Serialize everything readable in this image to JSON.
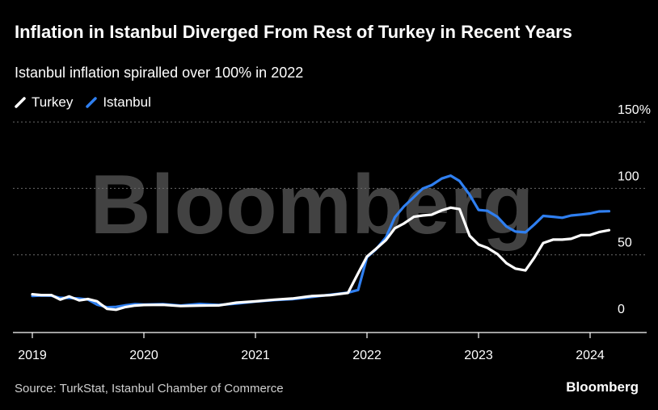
{
  "header": {
    "title": "Inflation in Istanbul Diverged From Rest of Turkey in Recent Years",
    "subtitle": "Istanbul inflation spiralled over 100% in 2022"
  },
  "footer": {
    "source": "Source: TurkStat, Istanbul Chamber of Commerce",
    "brand": "Bloomberg"
  },
  "watermark": "Bloomberg",
  "colors": {
    "background": "#000000",
    "turkey": "#ffffff",
    "istanbul": "#2f7ff0",
    "grid": "#6a6a6a"
  },
  "chart_data": {
    "type": "line",
    "title": "Inflation in Istanbul Diverged From Rest of Turkey in Recent Years",
    "subtitle": "Istanbul inflation spiralled over 100% in 2022",
    "xlabel": "",
    "ylabel": "",
    "x_ticks": [
      "2019",
      "2020",
      "2021",
      "2022",
      "2023",
      "2024"
    ],
    "y_ticks": [
      {
        "value": 0,
        "label": "0"
      },
      {
        "value": 50,
        "label": "50"
      },
      {
        "value": 100,
        "label": "100"
      },
      {
        "value": 150,
        "label": "150%"
      }
    ],
    "xlim": [
      2019.0,
      2024.5
    ],
    "ylim": [
      -8,
      150
    ],
    "grid": true,
    "legend": "top-left",
    "series": [
      {
        "name": "Turkey",
        "color": "#ffffff",
        "x": [
          2019.0,
          2019.08,
          2019.17,
          2019.25,
          2019.33,
          2019.42,
          2019.5,
          2019.58,
          2019.67,
          2019.75,
          2019.83,
          2019.92,
          2020.0,
          2020.17,
          2020.33,
          2020.5,
          2020.67,
          2020.83,
          2021.0,
          2021.17,
          2021.33,
          2021.5,
          2021.67,
          2021.83,
          2021.92,
          2022.0,
          2022.08,
          2022.17,
          2022.25,
          2022.33,
          2022.42,
          2022.5,
          2022.58,
          2022.67,
          2022.75,
          2022.83,
          2022.92,
          2023.0,
          2023.08,
          2023.17,
          2023.25,
          2023.33,
          2023.42,
          2023.5,
          2023.58,
          2023.67,
          2023.75,
          2023.83,
          2023.92,
          2024.0,
          2024.08,
          2024.17
        ],
        "y": [
          20.3,
          19.7,
          19.7,
          16.3,
          18.7,
          15.7,
          16.7,
          15.0,
          9.3,
          8.6,
          10.6,
          11.8,
          12.2,
          12.4,
          11.4,
          11.8,
          11.9,
          14.0,
          14.97,
          16.2,
          17.1,
          18.9,
          19.6,
          21.3,
          36.1,
          48.7,
          54.4,
          61.1,
          70.0,
          73.5,
          78.6,
          79.6,
          80.2,
          83.5,
          85.5,
          84.4,
          64.3,
          57.7,
          55.2,
          50.5,
          43.7,
          39.6,
          38.2,
          47.8,
          58.9,
          61.5,
          61.4,
          62.0,
          64.8,
          64.9,
          67.1,
          68.5
        ]
      },
      {
        "name": "Istanbul",
        "color": "#2f7ff0",
        "x": [
          2019.0,
          2019.08,
          2019.17,
          2019.25,
          2019.33,
          2019.42,
          2019.5,
          2019.58,
          2019.67,
          2019.75,
          2019.83,
          2019.92,
          2020.0,
          2020.17,
          2020.33,
          2020.5,
          2020.67,
          2020.83,
          2021.0,
          2021.17,
          2021.33,
          2021.5,
          2021.67,
          2021.83,
          2021.92,
          2022.0,
          2022.08,
          2022.17,
          2022.25,
          2022.33,
          2022.42,
          2022.5,
          2022.58,
          2022.67,
          2022.75,
          2022.83,
          2022.92,
          2023.0,
          2023.08,
          2023.17,
          2023.25,
          2023.33,
          2023.42,
          2023.5,
          2023.58,
          2023.67,
          2023.75,
          2023.83,
          2023.92,
          2024.0,
          2024.08,
          2024.17
        ],
        "y": [
          19.0,
          19.3,
          19.2,
          17.6,
          17.5,
          17.1,
          16.3,
          12.5,
          10.5,
          10.8,
          11.9,
          12.8,
          12.5,
          12.8,
          11.8,
          13.0,
          12.2,
          13.3,
          14.8,
          15.9,
          16.6,
          18.2,
          19.9,
          21.5,
          23.5,
          48.2,
          54.1,
          63.2,
          78.3,
          86.3,
          93.5,
          99.9,
          102.4,
          107.4,
          109.6,
          105.5,
          95.2,
          83.8,
          83.1,
          78.5,
          71.3,
          67.5,
          66.9,
          72.8,
          79.3,
          78.6,
          77.9,
          79.6,
          80.3,
          81.1,
          82.6,
          82.8
        ]
      }
    ]
  }
}
